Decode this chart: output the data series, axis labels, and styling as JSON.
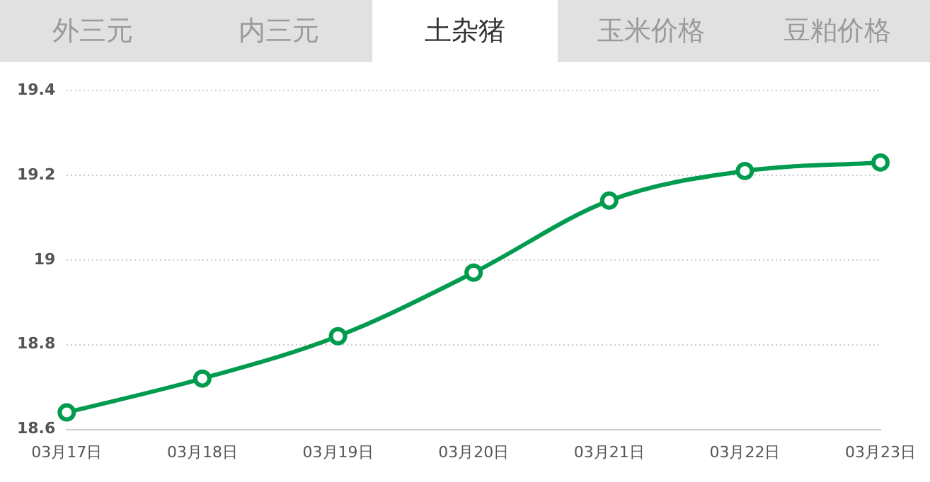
{
  "chart_data": {
    "type": "line",
    "annotations": [
      "外三元",
      "内三元",
      "土杂猪",
      "玉米价格",
      "豆粕价格"
    ],
    "categories": [
      "03月17日",
      "03月18日",
      "03月19日",
      "03月20日",
      "03月21日",
      "03月22日",
      "03月23日"
    ],
    "series": [
      {
        "color": "#009b4e",
        "values": [
          18.64,
          18.72,
          18.82,
          18.97,
          19.14,
          19.21,
          19.23
        ]
      }
    ],
    "ylim": [
      18.6,
      19.4
    ],
    "yticks": [
      18.6,
      18.8,
      19,
      19.2,
      19.4
    ],
    "grid": "y",
    "legend": false,
    "marker": "circle",
    "line_style": "solid"
  }
}
